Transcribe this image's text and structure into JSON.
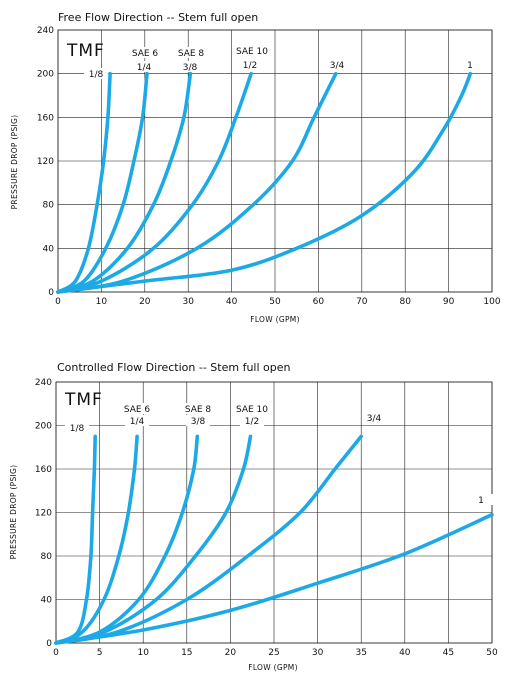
{
  "chart_data": [
    {
      "type": "line",
      "title": "Free Flow Direction -- Stem full open",
      "brand": "TMF",
      "xlabel": "FLOW (GPM)",
      "ylabel": "PRESSURE DROP (PSIG)",
      "xlim": [
        0,
        100
      ],
      "ylim": [
        0,
        240
      ],
      "xticks": [
        0,
        10,
        20,
        30,
        40,
        50,
        60,
        70,
        80,
        90,
        100
      ],
      "yticks": [
        0,
        40,
        80,
        120,
        160,
        200,
        240
      ],
      "grid": true,
      "line_color": "#1ca9e6",
      "series": [
        {
          "name": "1/8",
          "sae": "",
          "x": [
            0,
            4,
            7,
            9,
            10.5,
            11.5,
            12
          ],
          "y": [
            0,
            10,
            40,
            80,
            120,
            160,
            200
          ]
        },
        {
          "name": "1/4",
          "sae": "SAE 6",
          "x": [
            0,
            6,
            11,
            15,
            17.5,
            19.5,
            20.5
          ],
          "y": [
            0,
            10,
            40,
            80,
            120,
            160,
            200
          ]
        },
        {
          "name": "3/8",
          "sae": "SAE 8",
          "x": [
            0,
            8,
            16,
            22,
            26,
            29,
            30.5
          ],
          "y": [
            0,
            10,
            40,
            80,
            120,
            160,
            200
          ]
        },
        {
          "name": "1/2",
          "sae": "SAE 10",
          "x": [
            0,
            10,
            22,
            31,
            37,
            41,
            44.5
          ],
          "y": [
            0,
            10,
            40,
            80,
            120,
            160,
            200
          ]
        },
        {
          "name": "3/4",
          "sae": "",
          "x": [
            0,
            15,
            32,
            45,
            54,
            59,
            64
          ],
          "y": [
            0,
            10,
            40,
            80,
            120,
            160,
            200
          ]
        },
        {
          "name": "1",
          "sae": "",
          "x": [
            0,
            20,
            40,
            55,
            70,
            82,
            89,
            93,
            95
          ],
          "y": [
            0,
            10,
            20,
            40,
            70,
            110,
            150,
            180,
            200
          ]
        }
      ]
    },
    {
      "type": "line",
      "title": "Controlled Flow Direction -- Stem full open",
      "brand": "TMF",
      "xlabel": "FLOW (GPM)",
      "ylabel": "PRESSURE DROP (PSIG)",
      "xlim": [
        0,
        50
      ],
      "ylim": [
        0,
        240
      ],
      "xticks": [
        0,
        5,
        10,
        15,
        20,
        25,
        30,
        35,
        40,
        45,
        50
      ],
      "yticks": [
        0,
        40,
        80,
        120,
        160,
        200,
        240
      ],
      "grid": true,
      "line_color": "#1ca9e6",
      "series": [
        {
          "name": "1/8",
          "sae": "",
          "x": [
            0,
            2.5,
            3.5,
            4,
            4.2,
            4.4,
            4.5
          ],
          "y": [
            0,
            10,
            40,
            80,
            120,
            160,
            190
          ]
        },
        {
          "name": "1/4",
          "sae": "SAE 6",
          "x": [
            0,
            3,
            5.5,
            7.2,
            8.3,
            9,
            9.3
          ],
          "y": [
            0,
            10,
            40,
            80,
            120,
            160,
            190
          ]
        },
        {
          "name": "3/8",
          "sae": "SAE 8",
          "x": [
            0,
            5,
            9.5,
            12.5,
            14.5,
            15.8,
            16.2
          ],
          "y": [
            0,
            10,
            40,
            80,
            120,
            160,
            190
          ]
        },
        {
          "name": "1/2",
          "sae": "SAE 10",
          "x": [
            0,
            5.5,
            11.5,
            16,
            19.5,
            21.5,
            22.3
          ],
          "y": [
            0,
            10,
            40,
            80,
            120,
            160,
            190
          ]
        },
        {
          "name": "3/4",
          "sae": "",
          "x": [
            0,
            7,
            15,
            22,
            28,
            32,
            35
          ],
          "y": [
            0,
            10,
            40,
            80,
            120,
            160,
            190
          ]
        },
        {
          "name": "1",
          "sae": "",
          "x": [
            0,
            10,
            20,
            30,
            40,
            50
          ],
          "y": [
            0,
            12,
            30,
            55,
            82,
            118
          ]
        }
      ]
    }
  ]
}
